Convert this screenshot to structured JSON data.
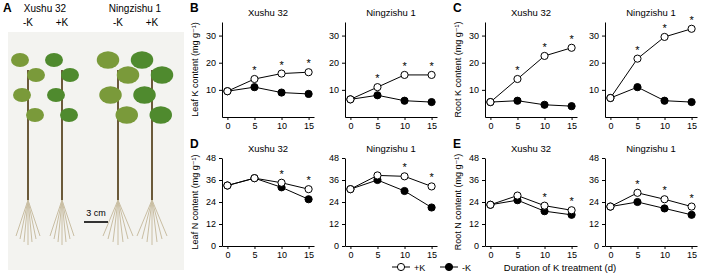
{
  "chart_data": [
    {
      "panel": "B",
      "type": "line",
      "title": "Xushu 32",
      "y_label": "Leaf K content (mg g⁻¹)",
      "x": [
        0,
        5,
        10,
        15
      ],
      "xlim": [
        -1,
        16
      ],
      "xticks": [
        0,
        5,
        10,
        15
      ],
      "ylim": [
        0,
        35
      ],
      "yticks": [
        10,
        20,
        30
      ],
      "series": [
        {
          "name": "+K",
          "color": "#000000",
          "marker": "open-circle",
          "values": [
            9.5,
            14,
            16,
            16.5
          ]
        },
        {
          "name": "-K",
          "color": "#000000",
          "marker": "filled-circle",
          "values": [
            9.5,
            11,
            9,
            8.5
          ]
        }
      ],
      "annotations": [
        {
          "text": "*",
          "x": 5,
          "y": 14
        },
        {
          "text": "*",
          "x": 10,
          "y": 16
        },
        {
          "text": "*",
          "x": 15,
          "y": 16.5
        }
      ]
    },
    {
      "type": "line",
      "title": "Ningzishu 1",
      "x": [
        0,
        5,
        10,
        15
      ],
      "xlim": [
        -1,
        16
      ],
      "xticks": [
        0,
        5,
        10,
        15
      ],
      "ylim": [
        0,
        35
      ],
      "yticks": [
        10,
        20,
        30
      ],
      "series": [
        {
          "name": "+K",
          "color": "#000000",
          "marker": "open-circle",
          "values": [
            6.5,
            11,
            15.5,
            15.5
          ]
        },
        {
          "name": "-K",
          "color": "#000000",
          "marker": "filled-circle",
          "values": [
            6.5,
            8,
            6,
            5.5
          ]
        }
      ],
      "annotations": [
        {
          "text": "*",
          "x": 5,
          "y": 11
        },
        {
          "text": "*",
          "x": 10,
          "y": 15.5
        },
        {
          "text": "*",
          "x": 15,
          "y": 15.5
        }
      ]
    },
    {
      "panel": "C",
      "type": "line",
      "title": "Xushu 32",
      "y_label": "Root K content (mg g⁻¹)",
      "x": [
        0,
        5,
        10,
        15
      ],
      "xlim": [
        -1,
        16
      ],
      "xticks": [
        0,
        5,
        10,
        15
      ],
      "ylim": [
        0,
        35
      ],
      "yticks": [
        10,
        20,
        30
      ],
      "series": [
        {
          "name": "+K",
          "color": "#000000",
          "marker": "open-circle",
          "values": [
            5.5,
            14,
            22.5,
            25.5
          ]
        },
        {
          "name": "-K",
          "color": "#000000",
          "marker": "filled-circle",
          "values": [
            5.5,
            6,
            4.5,
            4
          ]
        }
      ],
      "annotations": [
        {
          "text": "*",
          "x": 5,
          "y": 14
        },
        {
          "text": "*",
          "x": 10,
          "y": 22.5
        },
        {
          "text": "*",
          "x": 15,
          "y": 25.5
        }
      ]
    },
    {
      "type": "line",
      "title": "Ningzishu 1",
      "x": [
        0,
        5,
        10,
        15
      ],
      "xlim": [
        -1,
        16
      ],
      "xticks": [
        0,
        5,
        10,
        15
      ],
      "ylim": [
        0,
        35
      ],
      "yticks": [
        10,
        20,
        30
      ],
      "series": [
        {
          "name": "+K",
          "color": "#000000",
          "marker": "open-circle",
          "values": [
            7,
            21.5,
            29.5,
            32.5
          ]
        },
        {
          "name": "-K",
          "color": "#000000",
          "marker": "filled-circle",
          "values": [
            7,
            11,
            6,
            5.5
          ]
        }
      ],
      "annotations": [
        {
          "text": "*",
          "x": 5,
          "y": 21.5
        },
        {
          "text": "*",
          "x": 10,
          "y": 29.5
        },
        {
          "text": "*",
          "x": 15,
          "y": 32.5
        }
      ]
    },
    {
      "panel": "D",
      "type": "line",
      "title": "Xushu 32",
      "y_label": "Leaf N content (mg g⁻¹)",
      "x": [
        0,
        5,
        10,
        15
      ],
      "xlim": [
        -1,
        16
      ],
      "xticks": [
        0,
        5,
        10,
        15
      ],
      "ylim": [
        0,
        48
      ],
      "yticks": [
        0,
        12,
        24,
        36,
        48
      ],
      "series": [
        {
          "name": "+K",
          "color": "#000000",
          "marker": "open-circle",
          "values": [
            33,
            37,
            34.5,
            31
          ]
        },
        {
          "name": "-K",
          "color": "#000000",
          "marker": "filled-circle",
          "values": [
            33,
            37,
            32,
            25.5
          ]
        }
      ],
      "annotations": [
        {
          "text": "*",
          "x": 10,
          "y": 34.5
        },
        {
          "text": "*",
          "x": 15,
          "y": 31
        }
      ]
    },
    {
      "type": "line",
      "title": "Ningzishu 1",
      "x": [
        0,
        5,
        10,
        15
      ],
      "xlim": [
        -1,
        16
      ],
      "xticks": [
        0,
        5,
        10,
        15
      ],
      "ylim": [
        0,
        48
      ],
      "yticks": [
        0,
        12,
        24,
        36,
        48
      ],
      "series": [
        {
          "name": "+K",
          "color": "#000000",
          "marker": "open-circle",
          "values": [
            31,
            38.5,
            38,
            32.5
          ]
        },
        {
          "name": "-K",
          "color": "#000000",
          "marker": "filled-circle",
          "values": [
            31,
            36,
            30,
            21
          ]
        }
      ],
      "annotations": [
        {
          "text": "*",
          "x": 10,
          "y": 38
        },
        {
          "text": "*",
          "x": 15,
          "y": 32.5
        }
      ]
    },
    {
      "panel": "E",
      "type": "line",
      "title": "Xushu 32",
      "y_label": "Root N content (mg g⁻¹)",
      "x": [
        0,
        5,
        10,
        15
      ],
      "xlim": [
        -1,
        16
      ],
      "xticks": [
        0,
        5,
        10,
        15
      ],
      "ylim": [
        0,
        48
      ],
      "yticks": [
        0,
        12,
        24,
        36,
        48
      ],
      "series": [
        {
          "name": "+K",
          "color": "#000000",
          "marker": "open-circle",
          "values": [
            22.5,
            27.5,
            22,
            19.5
          ]
        },
        {
          "name": "-K",
          "color": "#000000",
          "marker": "filled-circle",
          "values": [
            22.5,
            25,
            19,
            17
          ]
        }
      ],
      "annotations": [
        {
          "text": "*",
          "x": 10,
          "y": 22
        },
        {
          "text": "*",
          "x": 15,
          "y": 19.5
        }
      ]
    },
    {
      "type": "line",
      "title": "Ningzishu 1",
      "x": [
        0,
        5,
        10,
        15
      ],
      "xlim": [
        -1,
        16
      ],
      "xticks": [
        0,
        5,
        10,
        15
      ],
      "ylim": [
        0,
        48
      ],
      "yticks": [
        0,
        12,
        24,
        36,
        48
      ],
      "series": [
        {
          "name": "+K",
          "color": "#000000",
          "marker": "open-circle",
          "values": [
            21.5,
            29,
            25.5,
            21.5
          ]
        },
        {
          "name": "-K",
          "color": "#000000",
          "marker": "filled-circle",
          "values": [
            21.5,
            24,
            20.5,
            17
          ]
        }
      ],
      "annotations": [
        {
          "text": "*",
          "x": 5,
          "y": 29
        },
        {
          "text": "*",
          "x": 10,
          "y": 25.5
        },
        {
          "text": "*",
          "x": 15,
          "y": 21.5
        }
      ]
    }
  ],
  "figure": {
    "x_label": "Duration of K treatment (d)",
    "photo": {
      "panel": "A",
      "cultivars": [
        "Xushu 32",
        "Ningzishu 1"
      ],
      "treatments": [
        [
          "-K",
          "+K"
        ],
        [
          "-K",
          "+K"
        ]
      ],
      "scale_bar": "3 cm"
    }
  }
}
